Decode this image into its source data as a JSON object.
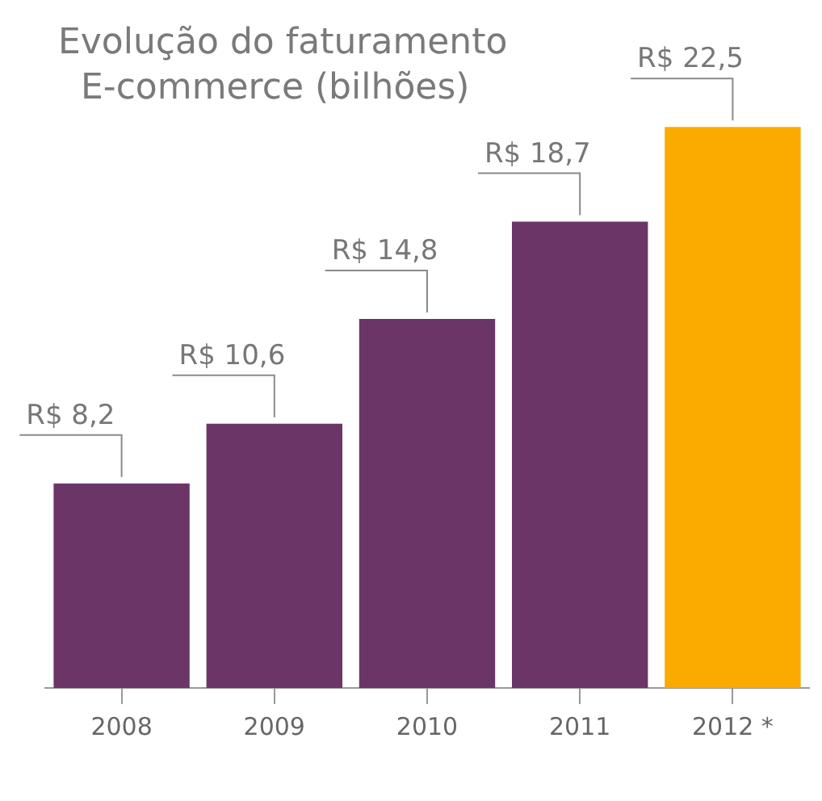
{
  "chart_data": {
    "type": "bar",
    "title": "Evolução do faturamento",
    "subtitle": "E-commerce (bilhões)",
    "categories": [
      "2008",
      "2009",
      "2010",
      "2011",
      "2012 *"
    ],
    "values": [
      8.2,
      10.6,
      14.8,
      18.7,
      22.5
    ],
    "colors": [
      "#6b3567",
      "#6b3567",
      "#6b3567",
      "#6b3567",
      "#fbaa00"
    ],
    "value_labels": [
      "R$ 8,2",
      "R$ 10,6",
      "R$ 14,8",
      "R$ 18,7",
      "R$ 22,5"
    ],
    "grid": false,
    "legend": false
  }
}
